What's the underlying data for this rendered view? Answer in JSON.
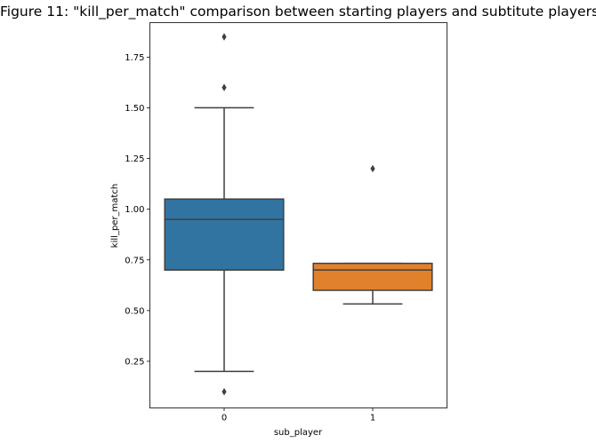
{
  "chart_data": {
    "type": "box",
    "title": "Figure 11: \"kill_per_match\" comparison between starting players and subtitute players",
    "xlabel": "sub_player",
    "ylabel": "kill_per_match",
    "categories": [
      "0",
      "1"
    ],
    "ylim": [
      0.02,
      1.92
    ],
    "yticks": [
      0.25,
      0.5,
      0.75,
      1.0,
      1.25,
      1.5,
      1.75
    ],
    "ytick_labels": [
      "0.25",
      "0.50",
      "0.75",
      "1.00",
      "1.25",
      "1.50",
      "1.75"
    ],
    "grid": false,
    "boxes": [
      {
        "category": "0",
        "whisker_low": 0.2,
        "q1": 0.7,
        "median": 0.95,
        "q3": 1.05,
        "whisker_high": 1.5,
        "outliers": [
          0.1,
          1.6,
          1.85
        ],
        "color": "#3274a1"
      },
      {
        "category": "1",
        "whisker_low": 0.533,
        "q1": 0.6,
        "median": 0.7,
        "q3": 0.733,
        "whisker_high": 0.733,
        "outliers": [
          1.2
        ],
        "color": "#e1812c"
      }
    ]
  }
}
